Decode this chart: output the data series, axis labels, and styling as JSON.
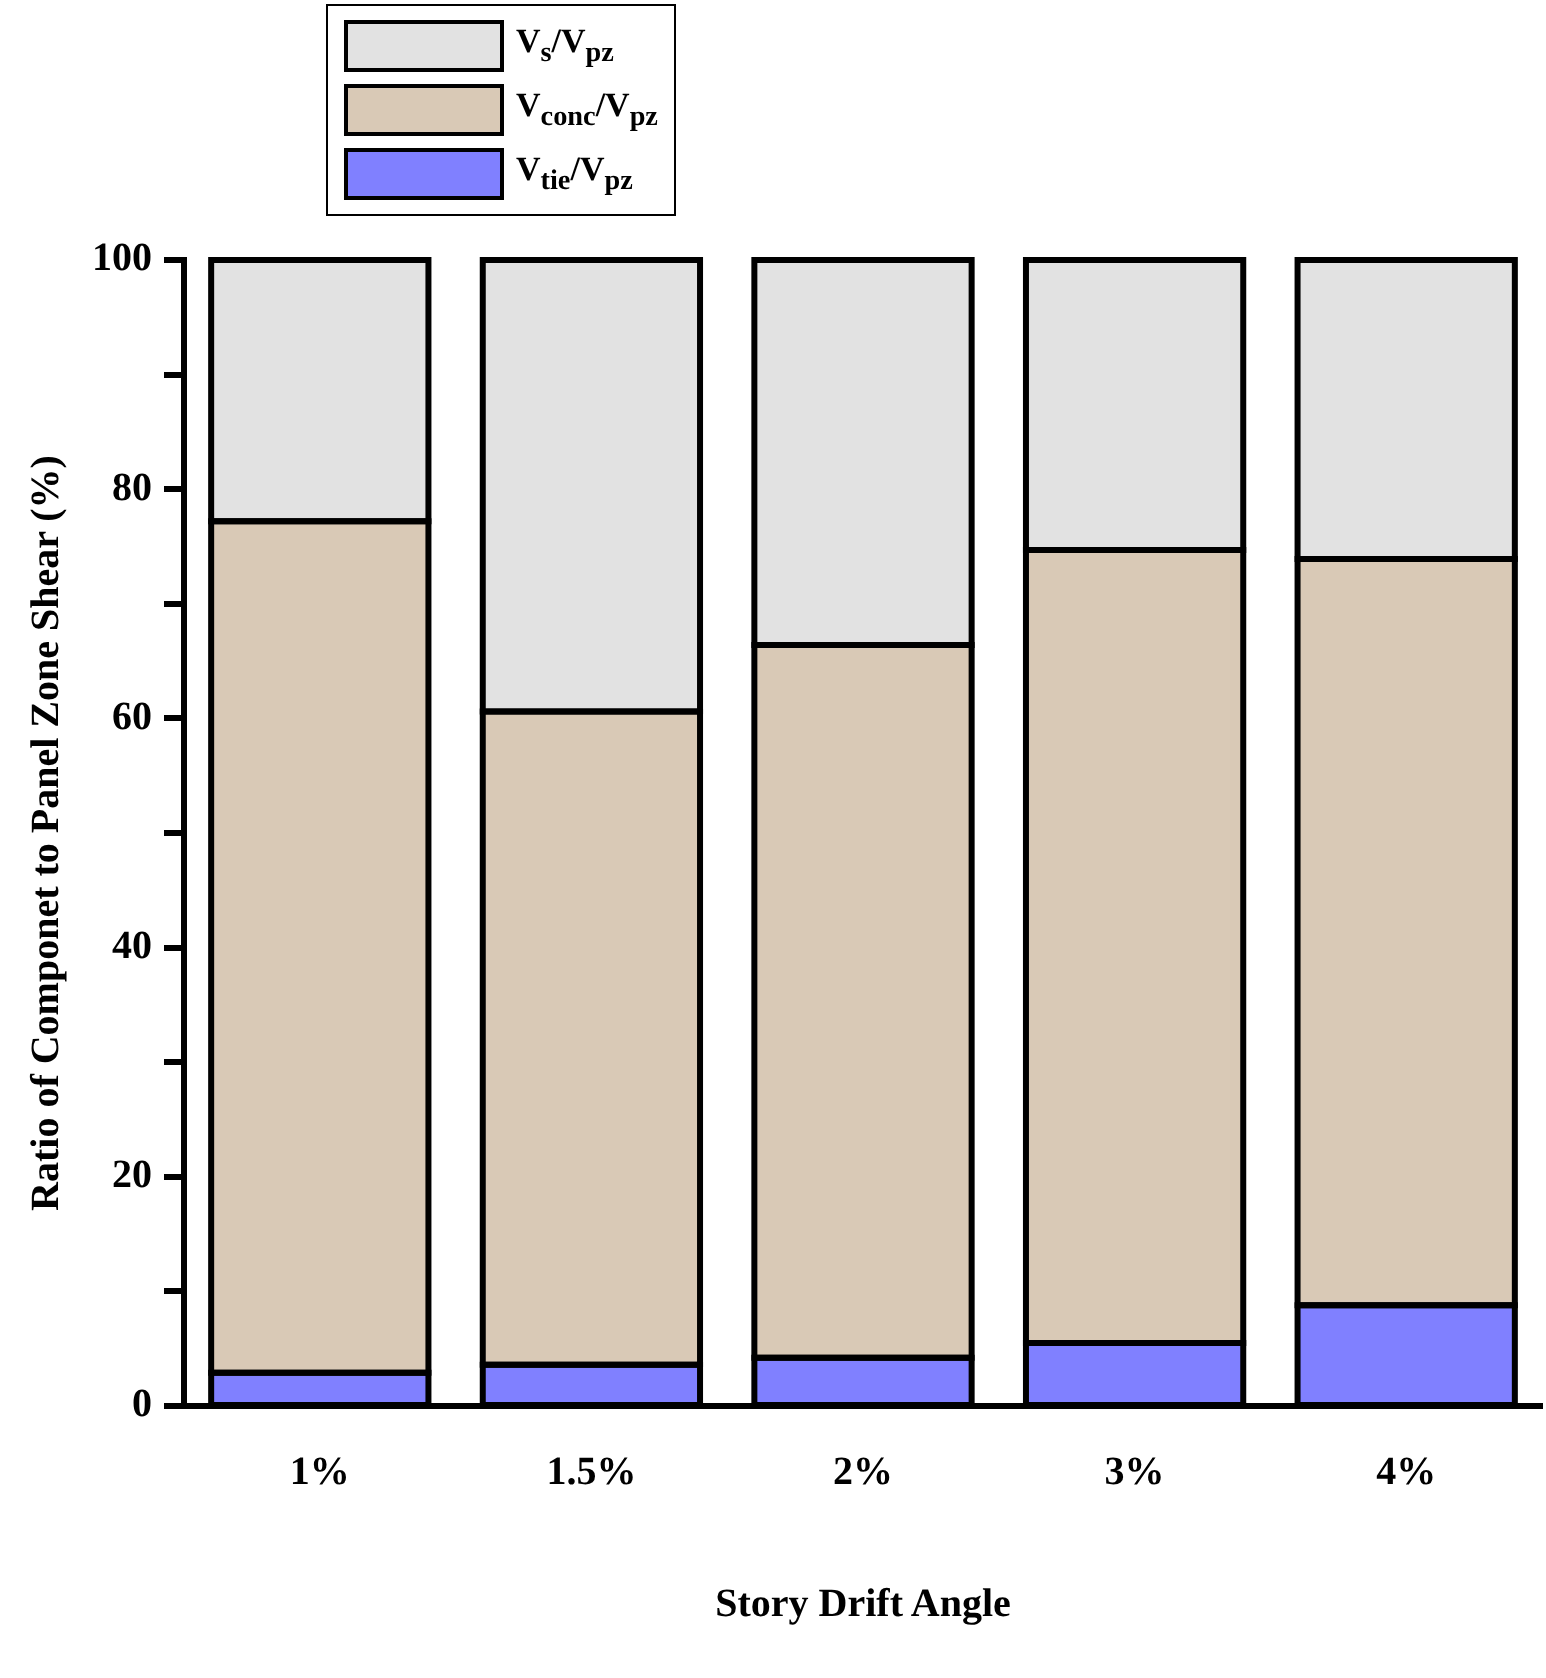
{
  "chart_data": {
    "type": "bar",
    "stacked": true,
    "xlabel": "Story Drift Angle",
    "ylabel": "Ratio of Componet to Panel Zone Shear (%)",
    "categories": [
      "1%",
      "1.5%",
      "2%",
      "3%",
      "4%"
    ],
    "series": [
      {
        "name": "V$_{tie}$/V$_{pz}$",
        "color": "#8080ff",
        "values": [
          2.9,
          3.6,
          4.2,
          5.5,
          8.8
        ]
      },
      {
        "name": "V$_{conc}$/V$_{pz}$",
        "color": "#d9c9b6",
        "values": [
          74.3,
          57,
          62.2,
          69.2,
          65.1
        ]
      },
      {
        "name": "V$_{s}$/V$_{pz}$",
        "color": "#e2e2e2",
        "values": [
          22.8,
          39.4,
          33.6,
          25.3,
          26.1
        ]
      }
    ],
    "ylim": [
      0,
      100
    ],
    "yticks": [
      0,
      {
        "value": 10,
        "label": null
      },
      20,
      {
        "value": 30,
        "label": null
      },
      40,
      {
        "value": 50,
        "label": null
      },
      60,
      {
        "value": 70,
        "label": null
      },
      80,
      {
        "value": 90,
        "label": null
      },
      100
    ],
    "grid": false,
    "legend": "top left"
  }
}
